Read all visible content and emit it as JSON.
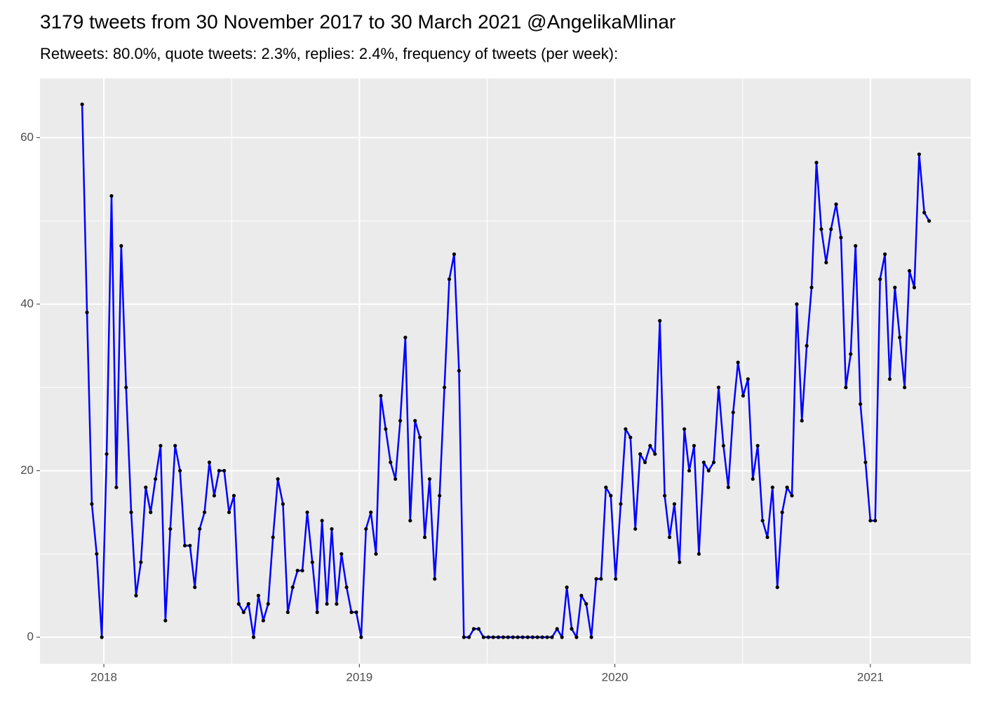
{
  "chart_data": {
    "type": "line",
    "title": "3179 tweets from 30 November 2017 to 30 March 2021 @AngelikaMlinar",
    "subtitle": "Retweets: 80.0%, quote tweets: 2.3%, replies: 2.4%, frequency of tweets (per week):",
    "x": [
      2017.915,
      2017.934,
      2017.953,
      2017.972,
      2017.992,
      2018.011,
      2018.03,
      2018.049,
      2018.068,
      2018.087,
      2018.107,
      2018.126,
      2018.145,
      2018.164,
      2018.183,
      2018.202,
      2018.222,
      2018.241,
      2018.26,
      2018.279,
      2018.298,
      2018.317,
      2018.337,
      2018.356,
      2018.375,
      2018.394,
      2018.413,
      2018.432,
      2018.451,
      2018.471,
      2018.49,
      2018.509,
      2018.528,
      2018.547,
      2018.566,
      2018.586,
      2018.605,
      2018.624,
      2018.643,
      2018.662,
      2018.681,
      2018.701,
      2018.72,
      2018.739,
      2018.758,
      2018.777,
      2018.796,
      2018.816,
      2018.835,
      2018.854,
      2018.873,
      2018.892,
      2018.911,
      2018.93,
      2018.95,
      2018.969,
      2018.988,
      2019.007,
      2019.026,
      2019.045,
      2019.065,
      2019.084,
      2019.103,
      2019.122,
      2019.141,
      2019.16,
      2019.18,
      2019.199,
      2019.218,
      2019.237,
      2019.256,
      2019.275,
      2019.295,
      2019.314,
      2019.333,
      2019.352,
      2019.371,
      2019.39,
      2019.409,
      2019.429,
      2019.448,
      2019.467,
      2019.486,
      2019.505,
      2019.524,
      2019.544,
      2019.563,
      2019.582,
      2019.601,
      2019.62,
      2019.639,
      2019.659,
      2019.678,
      2019.697,
      2019.716,
      2019.735,
      2019.754,
      2019.774,
      2019.793,
      2019.812,
      2019.831,
      2019.85,
      2019.869,
      2019.888,
      2019.908,
      2019.927,
      2019.946,
      2019.965,
      2019.984,
      2020.003,
      2020.023,
      2020.042,
      2020.061,
      2020.08,
      2020.099,
      2020.118,
      2020.138,
      2020.157,
      2020.176,
      2020.195,
      2020.214,
      2020.233,
      2020.253,
      2020.272,
      2020.291,
      2020.31,
      2020.329,
      2020.348,
      2020.367,
      2020.387,
      2020.406,
      2020.425,
      2020.444,
      2020.463,
      2020.482,
      2020.502,
      2020.521,
      2020.54,
      2020.559,
      2020.578,
      2020.597,
      2020.617,
      2020.636,
      2020.655,
      2020.674,
      2020.693,
      2020.712,
      2020.732,
      2020.751,
      2020.77,
      2020.789,
      2020.808,
      2020.827,
      2020.846,
      2020.866,
      2020.885,
      2020.904,
      2020.923,
      2020.942,
      2020.961,
      2020.981,
      2021.0,
      2021.019,
      2021.038,
      2021.057,
      2021.076,
      2021.096,
      2021.115,
      2021.134,
      2021.153,
      2021.172,
      2021.191,
      2021.211,
      2021.23
    ],
    "series": [
      {
        "color": "#0000ff",
        "point_color": "#000000",
        "values": [
          64,
          39,
          16,
          10,
          0,
          22,
          53,
          18,
          47,
          30,
          15,
          5,
          9,
          18,
          15,
          19,
          23,
          2,
          13,
          23,
          20,
          11,
          11,
          6,
          13,
          15,
          21,
          17,
          20,
          20,
          15,
          17,
          4,
          3,
          4,
          0,
          5,
          2,
          4,
          12,
          19,
          16,
          3,
          6,
          8,
          8,
          15,
          9,
          3,
          14,
          4,
          13,
          4,
          10,
          6,
          3,
          3,
          0,
          13,
          15,
          10,
          29,
          25,
          21,
          19,
          26,
          36,
          14,
          26,
          24,
          12,
          19,
          7,
          17,
          30,
          43,
          46,
          32,
          0,
          0,
          1,
          1,
          0,
          0,
          0,
          0,
          0,
          0,
          0,
          0,
          0,
          0,
          0,
          0,
          0,
          0,
          0,
          1,
          0,
          6,
          1,
          0,
          5,
          4,
          0,
          7,
          7,
          18,
          17,
          7,
          16,
          25,
          24,
          13,
          22,
          21,
          23,
          22,
          38,
          17,
          12,
          16,
          9,
          25,
          20,
          23,
          10,
          21,
          20,
          21,
          30,
          23,
          18,
          27,
          33,
          29,
          31,
          19,
          23,
          14,
          12,
          18,
          6,
          15,
          18,
          17,
          40,
          26,
          35,
          42,
          57,
          49,
          45,
          49,
          52,
          48,
          30,
          34,
          47,
          28,
          21,
          14,
          14,
          43,
          46,
          31,
          42,
          36,
          30,
          44,
          42,
          58,
          51,
          50
        ]
      }
    ],
    "xlim": [
      2017.75,
      2021.393
    ],
    "xticks": [
      2018,
      2019,
      2020,
      2021
    ],
    "xminor": [
      2018.5,
      2019.5,
      2020.5
    ],
    "ylim": [
      -3.2,
      67.1
    ],
    "yticks": [
      0,
      20,
      40,
      60
    ],
    "yminor": [
      10,
      30,
      50
    ],
    "grid": true
  }
}
